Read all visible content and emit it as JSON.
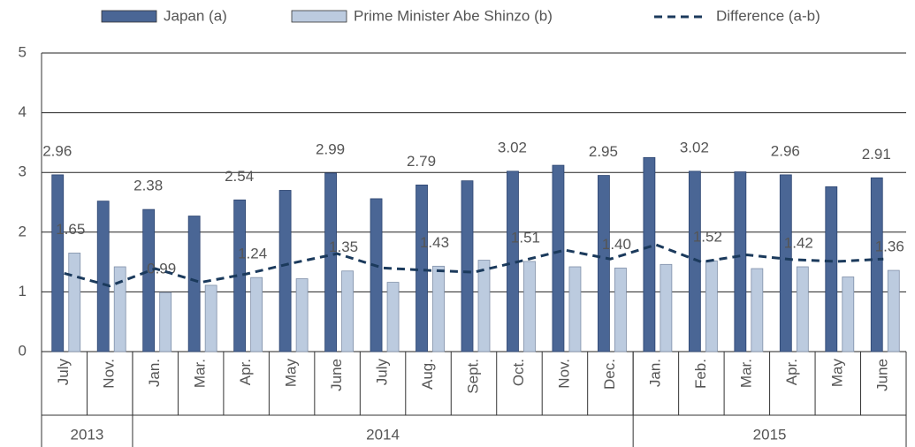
{
  "chart_data": {
    "type": "bar",
    "categories": [
      "July",
      "Nov.",
      "Jan.",
      "Mar.",
      "Apr.",
      "May",
      "June",
      "July",
      "Aug.",
      "Sept.",
      "Oct.",
      "Nov.",
      "Dec.",
      "Jan.",
      "Feb.",
      "Mar.",
      "Apr.",
      "May",
      "June"
    ],
    "x_groups": [
      {
        "label": "2013",
        "count": 2
      },
      {
        "label": "2014",
        "count": 11
      },
      {
        "label": "2015",
        "count": 6
      }
    ],
    "series": [
      {
        "name": "Japan (a)",
        "type": "bar",
        "color": "#4a6695",
        "values": [
          2.96,
          2.52,
          2.38,
          2.27,
          2.54,
          2.7,
          2.99,
          2.56,
          2.79,
          2.86,
          3.02,
          3.12,
          2.95,
          3.25,
          3.02,
          3.01,
          2.96,
          2.76,
          2.91
        ],
        "value_labels": [
          "2.96",
          null,
          "2.38",
          null,
          "2.54",
          null,
          "2.99",
          null,
          "2.79",
          null,
          "3.02",
          null,
          "2.95",
          null,
          "3.02",
          null,
          "2.96",
          null,
          "2.91"
        ]
      },
      {
        "name": "Prime Minister Abe Shinzo (b)",
        "type": "bar",
        "color": "#bccbdf",
        "values": [
          1.65,
          1.42,
          0.99,
          1.11,
          1.24,
          1.22,
          1.35,
          1.16,
          1.43,
          1.53,
          1.51,
          1.42,
          1.4,
          1.46,
          1.52,
          1.39,
          1.42,
          1.25,
          1.36
        ],
        "value_labels": [
          "1.65",
          null,
          "0.99",
          null,
          "1.24",
          null,
          "1.35",
          null,
          "1.43",
          null,
          "1.51",
          null,
          "1.40",
          null,
          "1.52",
          null,
          "1.42",
          null,
          "1.36"
        ]
      },
      {
        "name": "Difference (a-b)",
        "type": "line",
        "color": "#1b3a5c",
        "dashed": true,
        "values": [
          1.31,
          1.1,
          1.39,
          1.16,
          1.3,
          1.48,
          1.64,
          1.4,
          1.36,
          1.33,
          1.51,
          1.7,
          1.55,
          1.79,
          1.5,
          1.62,
          1.54,
          1.51,
          1.55
        ]
      }
    ],
    "ylim": [
      0,
      5
    ],
    "yticks": [
      0,
      1,
      2,
      3,
      4,
      5
    ],
    "grid": true,
    "legend": "top"
  }
}
